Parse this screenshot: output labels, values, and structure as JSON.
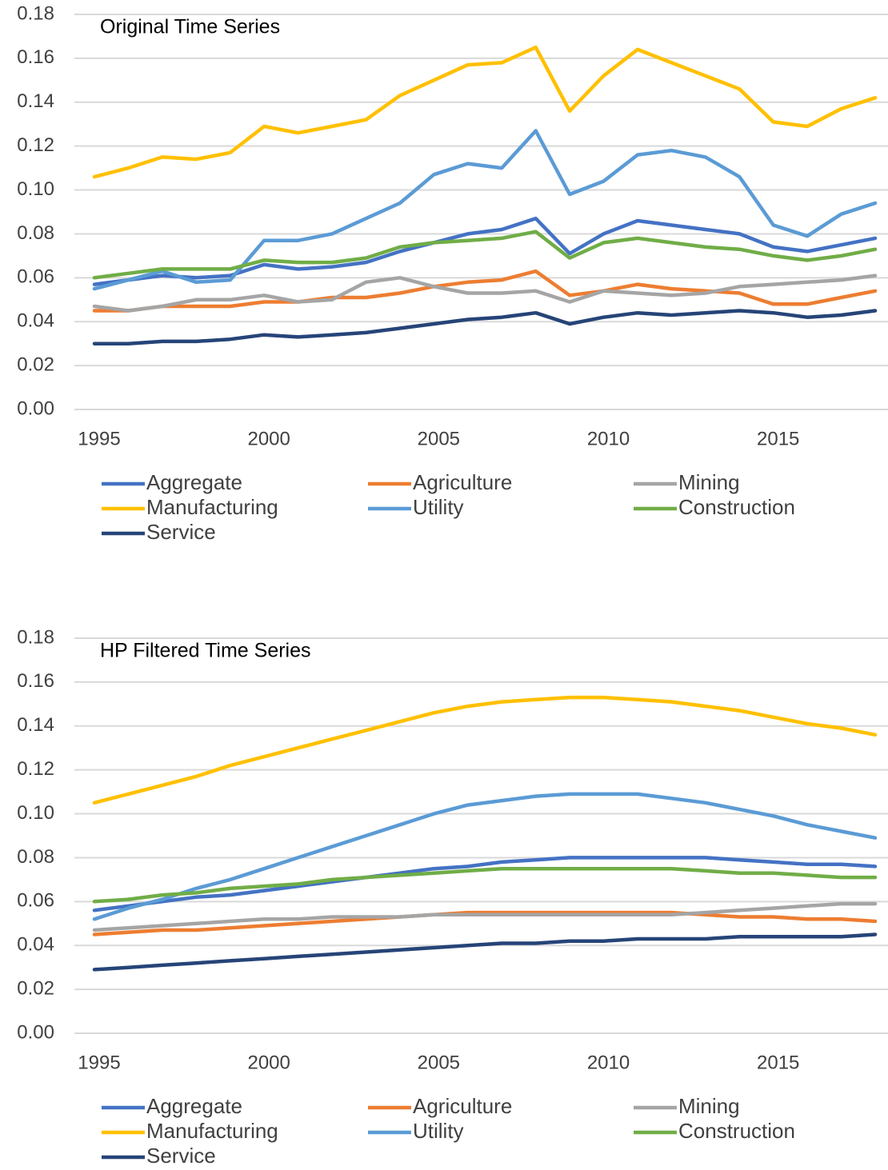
{
  "chart_data": [
    {
      "type": "line",
      "title": "Original Time Series",
      "x": [
        1995,
        1996,
        1997,
        1998,
        1999,
        2000,
        2001,
        2002,
        2003,
        2004,
        2005,
        2006,
        2007,
        2008,
        2009,
        2010,
        2011,
        2012,
        2013,
        2014,
        2015,
        2016,
        2017,
        2018
      ],
      "xlim": [
        1995,
        2018
      ],
      "xticks": [
        1995,
        2000,
        2005,
        2010,
        2015
      ],
      "ylim": [
        0,
        0.18
      ],
      "yticks": [
        {
          "value": 0,
          "label": "0.00"
        },
        {
          "value": 0.02,
          "label": "0.02"
        },
        {
          "value": 0.04,
          "label": "0.04"
        },
        {
          "value": 0.06,
          "label": "0.06"
        },
        {
          "value": 0.08,
          "label": "0.08"
        },
        {
          "value": 0.1,
          "label": "0.10"
        },
        {
          "value": 0.12,
          "label": "0.12"
        },
        {
          "value": 0.14,
          "label": "0.14"
        },
        {
          "value": 0.16,
          "label": "0.16"
        },
        {
          "value": 0.18,
          "label": "0.18"
        }
      ],
      "grid": true,
      "series": [
        {
          "name": "Aggregate",
          "color": "#4472c4",
          "values": [
            0.057,
            0.059,
            0.061,
            0.06,
            0.061,
            0.066,
            0.064,
            0.065,
            0.067,
            0.072,
            0.076,
            0.08,
            0.082,
            0.087,
            0.071,
            0.08,
            0.086,
            0.084,
            0.082,
            0.08,
            0.074,
            0.072,
            0.075,
            0.078
          ]
        },
        {
          "name": "Agriculture",
          "color": "#ed7d31",
          "values": [
            0.045,
            0.045,
            0.047,
            0.047,
            0.047,
            0.049,
            0.049,
            0.051,
            0.051,
            0.053,
            0.056,
            0.058,
            0.059,
            0.063,
            0.052,
            0.054,
            0.057,
            0.055,
            0.054,
            0.053,
            0.048,
            0.048,
            0.051,
            0.054
          ]
        },
        {
          "name": "Mining",
          "color": "#a5a5a5",
          "values": [
            0.047,
            0.045,
            0.047,
            0.05,
            0.05,
            0.052,
            0.049,
            0.05,
            0.058,
            0.06,
            0.056,
            0.053,
            0.053,
            0.054,
            0.049,
            0.054,
            0.053,
            0.052,
            0.053,
            0.056,
            0.057,
            0.058,
            0.059,
            0.061
          ]
        },
        {
          "name": "Manufacturing",
          "color": "#ffc000",
          "values": [
            0.106,
            0.11,
            0.115,
            0.114,
            0.117,
            0.129,
            0.126,
            0.129,
            0.132,
            0.143,
            0.15,
            0.157,
            0.158,
            0.165,
            0.136,
            0.152,
            0.164,
            0.158,
            0.152,
            0.146,
            0.131,
            0.129,
            0.137,
            0.142
          ]
        },
        {
          "name": "Utility",
          "color": "#5b9bd5",
          "values": [
            0.055,
            0.059,
            0.063,
            0.058,
            0.059,
            0.077,
            0.077,
            0.08,
            0.087,
            0.094,
            0.107,
            0.112,
            0.11,
            0.127,
            0.098,
            0.104,
            0.116,
            0.118,
            0.115,
            0.106,
            0.084,
            0.079,
            0.089,
            0.094
          ]
        },
        {
          "name": "Construction",
          "color": "#70ad47",
          "values": [
            0.06,
            0.062,
            0.064,
            0.064,
            0.064,
            0.068,
            0.067,
            0.067,
            0.069,
            0.074,
            0.076,
            0.077,
            0.078,
            0.081,
            0.069,
            0.076,
            0.078,
            0.076,
            0.074,
            0.073,
            0.07,
            0.068,
            0.07,
            0.073
          ]
        },
        {
          "name": "Service",
          "color": "#264478",
          "values": [
            0.03,
            0.03,
            0.031,
            0.031,
            0.032,
            0.034,
            0.033,
            0.034,
            0.035,
            0.037,
            0.039,
            0.041,
            0.042,
            0.044,
            0.039,
            0.042,
            0.044,
            0.043,
            0.044,
            0.045,
            0.044,
            0.042,
            0.043,
            0.045
          ]
        }
      ]
    },
    {
      "type": "line",
      "title": "HP Filtered Time Series",
      "x": [
        1995,
        1996,
        1997,
        1998,
        1999,
        2000,
        2001,
        2002,
        2003,
        2004,
        2005,
        2006,
        2007,
        2008,
        2009,
        2010,
        2011,
        2012,
        2013,
        2014,
        2015,
        2016,
        2017,
        2018
      ],
      "xlim": [
        1995,
        2018
      ],
      "xticks": [
        1995,
        2000,
        2005,
        2010,
        2015
      ],
      "ylim": [
        0,
        0.18
      ],
      "yticks": [
        {
          "value": 0,
          "label": "0.00"
        },
        {
          "value": 0.02,
          "label": "0.02"
        },
        {
          "value": 0.04,
          "label": "0.04"
        },
        {
          "value": 0.06,
          "label": "0.06"
        },
        {
          "value": 0.08,
          "label": "0.08"
        },
        {
          "value": 0.1,
          "label": "0.10"
        },
        {
          "value": 0.12,
          "label": "0.12"
        },
        {
          "value": 0.14,
          "label": "0.14"
        },
        {
          "value": 0.16,
          "label": "0.16"
        },
        {
          "value": 0.18,
          "label": "0.18"
        }
      ],
      "grid": true,
      "series": [
        {
          "name": "Aggregate",
          "color": "#4472c4",
          "values": [
            0.056,
            0.058,
            0.06,
            0.062,
            0.063,
            0.065,
            0.067,
            0.069,
            0.071,
            0.073,
            0.075,
            0.076,
            0.078,
            0.079,
            0.08,
            0.08,
            0.08,
            0.08,
            0.08,
            0.079,
            0.078,
            0.077,
            0.077,
            0.076
          ]
        },
        {
          "name": "Agriculture",
          "color": "#ed7d31",
          "values": [
            0.045,
            0.046,
            0.047,
            0.047,
            0.048,
            0.049,
            0.05,
            0.051,
            0.052,
            0.053,
            0.054,
            0.055,
            0.055,
            0.055,
            0.055,
            0.055,
            0.055,
            0.055,
            0.054,
            0.053,
            0.053,
            0.052,
            0.052,
            0.051
          ]
        },
        {
          "name": "Mining",
          "color": "#a5a5a5",
          "values": [
            0.047,
            0.048,
            0.049,
            0.05,
            0.051,
            0.052,
            0.052,
            0.053,
            0.053,
            0.053,
            0.054,
            0.054,
            0.054,
            0.054,
            0.054,
            0.054,
            0.054,
            0.054,
            0.055,
            0.056,
            0.057,
            0.058,
            0.059,
            0.059
          ]
        },
        {
          "name": "Manufacturing",
          "color": "#ffc000",
          "values": [
            0.105,
            0.109,
            0.113,
            0.117,
            0.122,
            0.126,
            0.13,
            0.134,
            0.138,
            0.142,
            0.146,
            0.149,
            0.151,
            0.152,
            0.153,
            0.153,
            0.152,
            0.151,
            0.149,
            0.147,
            0.144,
            0.141,
            0.139,
            0.136
          ]
        },
        {
          "name": "Utility",
          "color": "#5b9bd5",
          "values": [
            0.052,
            0.057,
            0.061,
            0.066,
            0.07,
            0.075,
            0.08,
            0.085,
            0.09,
            0.095,
            0.1,
            0.104,
            0.106,
            0.108,
            0.109,
            0.109,
            0.109,
            0.107,
            0.105,
            0.102,
            0.099,
            0.095,
            0.092,
            0.089
          ]
        },
        {
          "name": "Construction",
          "color": "#70ad47",
          "values": [
            0.06,
            0.061,
            0.063,
            0.064,
            0.066,
            0.067,
            0.068,
            0.07,
            0.071,
            0.072,
            0.073,
            0.074,
            0.075,
            0.075,
            0.075,
            0.075,
            0.075,
            0.075,
            0.074,
            0.073,
            0.073,
            0.072,
            0.071,
            0.071
          ]
        },
        {
          "name": "Service",
          "color": "#264478",
          "values": [
            0.029,
            0.03,
            0.031,
            0.032,
            0.033,
            0.034,
            0.035,
            0.036,
            0.037,
            0.038,
            0.039,
            0.04,
            0.041,
            0.041,
            0.042,
            0.042,
            0.043,
            0.043,
            0.043,
            0.044,
            0.044,
            0.044,
            0.044,
            0.045
          ]
        }
      ]
    }
  ]
}
